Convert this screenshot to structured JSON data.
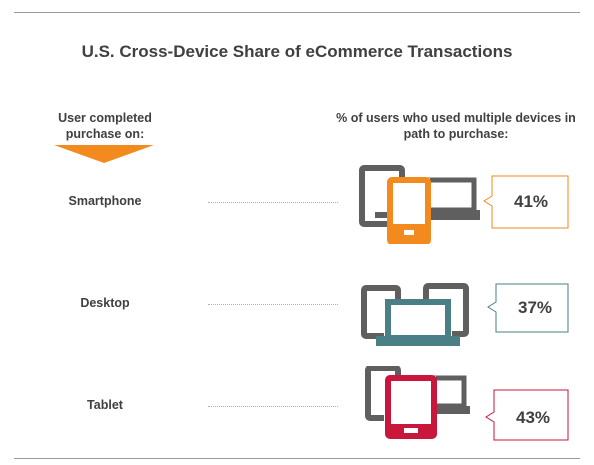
{
  "chart_data": {
    "type": "table",
    "title": "U.S. Cross-Device Share of eCommerce Transactions",
    "left_column_header": "User completed purchase on:",
    "right_column_header": "% of users who used multiple devices in path to purchase:",
    "rows": [
      {
        "device": "Smartphone",
        "value": 41,
        "label": "41%",
        "color": "#f28a1e"
      },
      {
        "device": "Desktop",
        "value": 37,
        "label": "37%",
        "color": "#4a7f86"
      },
      {
        "device": "Tablet",
        "value": 43,
        "label": "43%",
        "color": "#c8163d"
      }
    ],
    "colors": {
      "device_gray": "#5f5f5f",
      "arrow": "#f28a1e"
    }
  }
}
